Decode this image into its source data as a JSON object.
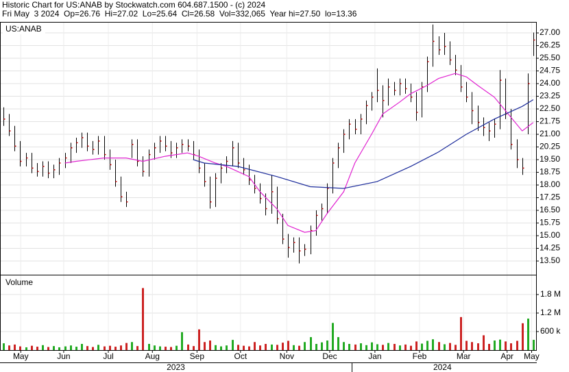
{
  "chart_data": {
    "type": "ohlc",
    "title": "Historic Chart for US:ANAB by Stockwatch.com 604.687.1500 - (c) 2024",
    "subtitle": "Fri May  3 2024  Op=26.76  Hi=27.02  Lo=25.64  Cl=26.58  Vol=332,065  Year hi=27.50  lo=13.36",
    "symbol": "US:ANAB",
    "bar_color": "#000000",
    "close_color": "#cc0000",
    "grid": true,
    "xlim": [
      -0.5,
      95.5
    ],
    "xticks": [
      {
        "value": 3.1,
        "label": "May"
      },
      {
        "value": 10.8,
        "label": "Jun"
      },
      {
        "value": 18.8,
        "label": "Jul"
      },
      {
        "value": 26.7,
        "label": "Aug"
      },
      {
        "value": 34.7,
        "label": "Sep"
      },
      {
        "value": 42.5,
        "label": "Oct"
      },
      {
        "value": 50.8,
        "label": "Nov"
      },
      {
        "value": 58.5,
        "label": "Dec"
      },
      {
        "value": 66.6,
        "label": "Jan"
      },
      {
        "value": 74.6,
        "label": "Feb"
      },
      {
        "value": 82.5,
        "label": "Mar"
      },
      {
        "value": 90.3,
        "label": "Apr"
      },
      {
        "value": 94.7,
        "label": "May"
      }
    ],
    "years": [
      {
        "value": 30.9,
        "label": "2023"
      },
      {
        "value": 78.7,
        "label": "2024"
      }
    ],
    "ylim": [
      12.69,
      27.61
    ],
    "yticks": [
      {
        "value": 13.5,
        "label": "13.50"
      },
      {
        "value": 14.25,
        "label": "14.25"
      },
      {
        "value": 15,
        "label": "15.00"
      },
      {
        "value": 15.75,
        "label": "15.75"
      },
      {
        "value": 16.5,
        "label": "16.50"
      },
      {
        "value": 17.25,
        "label": "17.25"
      },
      {
        "value": 18,
        "label": "18.00"
      },
      {
        "value": 18.75,
        "label": "18.75"
      },
      {
        "value": 19.5,
        "label": "19.50"
      },
      {
        "value": 20.25,
        "label": "20.25"
      },
      {
        "value": 21,
        "label": "21.00"
      },
      {
        "value": 21.75,
        "label": "21.75"
      },
      {
        "value": 22.5,
        "label": "22.50"
      },
      {
        "value": 23.25,
        "label": "23.25"
      },
      {
        "value": 24,
        "label": "24.00"
      },
      {
        "value": 24.75,
        "label": "24.75"
      },
      {
        "value": 25.5,
        "label": "25.50"
      },
      {
        "value": 26.25,
        "label": "26.25"
      },
      {
        "value": 27,
        "label": "27.00"
      }
    ],
    "high": [
      22.6,
      22.2,
      21.5,
      20.6,
      19.9,
      19.9,
      19.3,
      19.4,
      19.4,
      19.2,
      19.6,
      19.9,
      20.5,
      20.8,
      21.1,
      21.1,
      20.6,
      20.9,
      20.9,
      20.1,
      19.5,
      18.5,
      17.6,
      20.7,
      20.7,
      19.7,
      20.1,
      20.5,
      20.9,
      20.9,
      20.6,
      20.5,
      20.7,
      20.7,
      20.6,
      20.1,
      19.3,
      18.5,
      18.7,
      19.3,
      19.7,
      20.6,
      20.5,
      19.6,
      19.2,
      18.6,
      18.1,
      17.5,
      18.6,
      17.9,
      16.3,
      15.1,
      14.9,
      14.9,
      14.5,
      15.6,
      16.5,
      16.9,
      18.1,
      19.6,
      20.5,
      21.3,
      21.9,
      21.9,
      22.2,
      23.0,
      23.5,
      24.9,
      23.9,
      24.3,
      24.1,
      24.3,
      24.3,
      24.0,
      23.5,
      24.1,
      25.6,
      27.5,
      26.8,
      27.0,
      26.5,
      25.7,
      25.1,
      24.1,
      23.5,
      22.7,
      22.0,
      21.7,
      21.9,
      24.8,
      24.3,
      22.5,
      20.7,
      19.6,
      24.6,
      27.02
    ],
    "low": [
      21.5,
      20.9,
      20.0,
      19.1,
      19.1,
      18.7,
      18.5,
      18.5,
      18.4,
      18.4,
      18.6,
      19.0,
      19.3,
      19.9,
      20.2,
      20.0,
      19.8,
      19.8,
      19.5,
      18.9,
      17.9,
      17.0,
      16.7,
      19.6,
      19.1,
      18.5,
      18.5,
      19.5,
      19.9,
      20.0,
      19.6,
      19.6,
      19.9,
      20.0,
      19.5,
      18.7,
      17.9,
      16.6,
      16.7,
      18.1,
      18.7,
      19.1,
      19.0,
      18.6,
      18.0,
      17.5,
      16.9,
      16.2,
      16.3,
      15.7,
      14.5,
      13.7,
      14.0,
      13.36,
      13.8,
      13.9,
      15.0,
      15.9,
      16.3,
      17.5,
      19.0,
      19.9,
      20.7,
      21.0,
      21.0,
      21.6,
      22.4,
      22.9,
      22.0,
      22.7,
      23.3,
      23.3,
      23.4,
      22.9,
      21.8,
      22.0,
      23.5,
      25.0,
      25.7,
      25.7,
      25.1,
      24.5,
      23.5,
      22.9,
      21.6,
      21.2,
      20.9,
      20.6,
      20.8,
      21.3,
      21.9,
      20.1,
      19.0,
      18.6,
      21.0,
      25.64
    ],
    "close": [
      21.9,
      21.2,
      20.3,
      19.4,
      19.6,
      19.0,
      18.8,
      19.1,
      18.7,
      18.9,
      19.3,
      19.6,
      20.2,
      20.5,
      20.8,
      20.3,
      20.1,
      20.6,
      19.8,
      19.2,
      18.2,
      17.3,
      17.0,
      20.4,
      19.4,
      18.8,
      19.8,
      20.2,
      20.6,
      20.3,
      19.9,
      20.2,
      20.4,
      20.3,
      19.8,
      19.0,
      18.2,
      17.0,
      18.4,
      19.0,
      19.4,
      20.2,
      19.3,
      18.9,
      18.3,
      17.8,
      17.2,
      16.6,
      17.6,
      16.0,
      14.8,
      14.3,
      14.6,
      14.1,
      14.2,
      15.3,
      16.2,
      16.6,
      17.8,
      19.3,
      20.2,
      21.0,
      21.6,
      21.3,
      21.9,
      22.7,
      23.2,
      23.6,
      23.0,
      23.8,
      23.6,
      24.0,
      23.7,
      23.2,
      22.3,
      23.8,
      25.3,
      26.5,
      26.0,
      26.2,
      25.4,
      24.8,
      23.8,
      23.2,
      22.4,
      21.7,
      21.4,
      21.2,
      21.6,
      24.2,
      22.2,
      20.4,
      19.5,
      19.0,
      24.0,
      26.58
    ],
    "moving_averages": [
      {
        "color": "#e020d0",
        "x": [
          11,
          13,
          18,
          22,
          25,
          29,
          33,
          35,
          38,
          40,
          44,
          46,
          49,
          51,
          54,
          56,
          58,
          61,
          63,
          66,
          68,
          71,
          73,
          76,
          78,
          81,
          83,
          85,
          88,
          90,
          93,
          95
        ],
        "values": [
          19.3,
          19.4,
          19.6,
          19.6,
          19.4,
          19.7,
          19.9,
          19.7,
          19.3,
          19.1,
          18.5,
          17.6,
          16.6,
          15.6,
          15.2,
          15.3,
          16.3,
          17.6,
          19.3,
          21.0,
          22.2,
          22.9,
          23.4,
          23.9,
          24.3,
          24.6,
          24.4,
          23.9,
          23.2,
          22.4,
          21.2,
          21.7
        ]
      },
      {
        "color": "#1a2a9a",
        "x": [
          34,
          36,
          42,
          49,
          55,
          61,
          67,
          73,
          78,
          83,
          88,
          93,
          95
        ],
        "values": [
          19.5,
          19.3,
          19.1,
          18.5,
          17.9,
          17.8,
          18.2,
          19.1,
          19.95,
          21.0,
          21.9,
          22.65,
          23.05
        ]
      }
    ],
    "volume": {
      "label": "Volume",
      "up_color": "#22aa22",
      "down_color": "#cc2222",
      "ylim": [
        0,
        2420000
      ],
      "yticks": [
        {
          "value": 600000,
          "label": "600 k"
        },
        {
          "value": 1200000,
          "label": "1.2 M"
        },
        {
          "value": 1800000,
          "label": "1.8 M"
        }
      ],
      "values": [
        220000,
        150000,
        180000,
        120000,
        90000,
        140000,
        110000,
        160000,
        100000,
        130000,
        90000,
        120000,
        150000,
        110000,
        200000,
        130000,
        100000,
        170000,
        120000,
        140000,
        110000,
        150000,
        230000,
        260000,
        130000,
        2010000,
        200000,
        150000,
        120000,
        110000,
        100000,
        140000,
        580000,
        180000,
        130000,
        670000,
        260000,
        310000,
        160000,
        120000,
        150000,
        330000,
        170000,
        140000,
        120000,
        260000,
        150000,
        200000,
        180000,
        170000,
        240000,
        300000,
        160000,
        140000,
        260000,
        420000,
        200000,
        250000,
        310000,
        880000,
        420000,
        260000,
        200000,
        180000,
        220000,
        160000,
        250000,
        190000,
        170000,
        230000,
        200000,
        150000,
        180000,
        140000,
        280000,
        210000,
        300000,
        350000,
        260000,
        190000,
        230000,
        170000,
        1070000,
        300000,
        260000,
        220000,
        480000,
        200000,
        310000,
        340000,
        280000,
        220000,
        300000,
        870000,
        1020000,
        332065
      ]
    }
  }
}
